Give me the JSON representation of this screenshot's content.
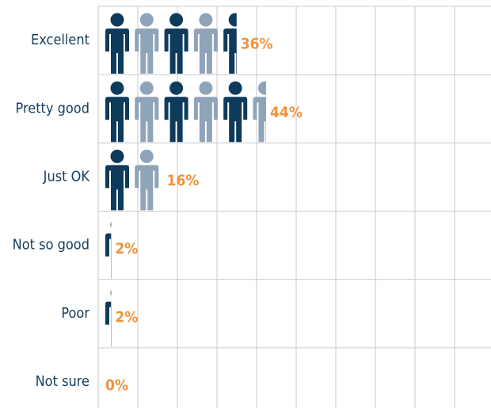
{
  "chart_data": {
    "type": "pictograph",
    "categories": [
      "Excellent",
      "Pretty good",
      "Just OK",
      "Not so good",
      "Poor",
      "Not sure"
    ],
    "values": [
      36,
      44,
      16,
      2,
      2,
      0
    ],
    "value_labels": [
      "36%",
      "44%",
      "16%",
      "2%",
      "2%",
      "0%"
    ],
    "colors": [
      "#0e3a5c",
      "#8fa3b9"
    ],
    "label_color": "#f0923b",
    "xlim": [
      0,
      100
    ],
    "grid": true
  }
}
